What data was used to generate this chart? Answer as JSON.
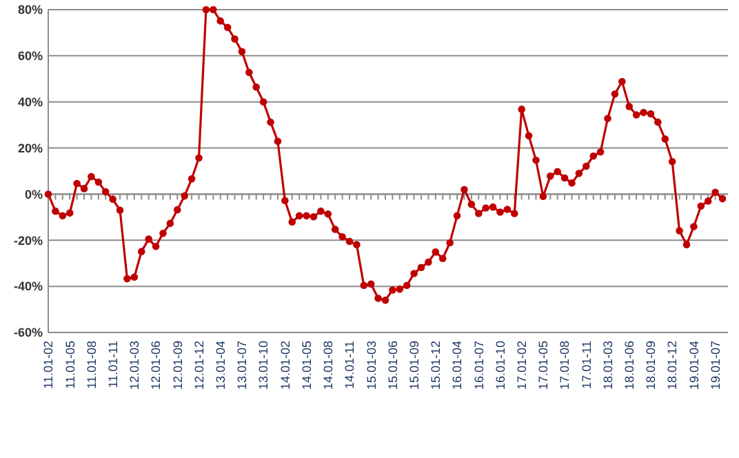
{
  "chart_data": {
    "type": "line",
    "categories": [
      "11.01-02",
      null,
      null,
      "11.01-05",
      null,
      null,
      "11.01-08",
      null,
      null,
      "11.01-11",
      null,
      null,
      "12.01-03",
      null,
      null,
      "12.01-06",
      null,
      null,
      "12.01-09",
      null,
      null,
      "12.01-12",
      null,
      null,
      "13.01-04",
      null,
      null,
      "13.01-07",
      null,
      null,
      "13.01-10",
      null,
      null,
      "14.01-02",
      null,
      null,
      "14.01-05",
      null,
      null,
      "14.01-08",
      null,
      null,
      "14.01-11",
      null,
      null,
      "15.01-03",
      null,
      null,
      "15.01-06",
      null,
      null,
      "15.01-09",
      null,
      null,
      "15.01-12",
      null,
      null,
      "16.01-04",
      null,
      null,
      "16.01-07",
      null,
      null,
      "16.01-10",
      null,
      null,
      "17.01-02",
      null,
      null,
      "17.01-05",
      null,
      null,
      "17.01-08",
      null,
      null,
      "17.01-11",
      null,
      null,
      "18.01-03",
      null,
      null,
      "18.01-06",
      null,
      null,
      "18.01-09",
      null,
      null,
      "18.01-12",
      null,
      null,
      "19.01-04",
      null,
      null,
      "19.01-07",
      null
    ],
    "series": [
      {
        "color": "#c00000",
        "values": [
          0,
          -7.4,
          -9.4,
          -8.2,
          4.6,
          2.4,
          7.6,
          5.2,
          1,
          -2.2,
          -7,
          -36.7,
          -36,
          -24.9,
          -19.5,
          -22.7,
          -17,
          -12.7,
          -6.8,
          -0.8,
          6.6,
          15.7,
          80,
          80,
          75.1,
          72.3,
          67.3,
          61.8,
          52.8,
          46.4,
          40,
          31.2,
          22.9,
          -2.8,
          -12.1,
          -9.4,
          -9.4,
          -9.8,
          -7.4,
          -8.6,
          -15.3,
          -18.5,
          -20.5,
          -21.9,
          -39.6,
          -39,
          -45.2,
          -46,
          -41.6,
          -41.2,
          -39.6,
          -34.4,
          -31.8,
          -29.5,
          -25.1,
          -27.9,
          -21.1,
          -9.4,
          2,
          -4.4,
          -8.4,
          -6,
          -5.6,
          -7.8,
          -6.6,
          -8.4,
          36.8,
          25.3,
          14.7,
          -1,
          7.8,
          9.8,
          7,
          4.8,
          9,
          12.1,
          16.5,
          18.3,
          32.8,
          43.4,
          48.8,
          38,
          34.4,
          35.4,
          34.8,
          31.2,
          23.9,
          14.1,
          -15.9,
          -21.9,
          -14.1,
          -5.2,
          -3,
          0.8,
          -2
        ]
      }
    ],
    "ylim": [
      -60,
      80
    ],
    "yticks": [
      {
        "value": -60,
        "label": "-60%"
      },
      {
        "value": -40,
        "label": "-40%"
      },
      {
        "value": -20,
        "label": "-20%"
      },
      {
        "value": 0,
        "label": "0%"
      },
      {
        "value": 20,
        "label": "20%"
      },
      {
        "value": 40,
        "label": "40%"
      },
      {
        "value": 60,
        "label": "60%"
      },
      {
        "value": 80,
        "label": "80%"
      }
    ],
    "grid": "y",
    "marker": "circle",
    "line_style": "solid"
  }
}
